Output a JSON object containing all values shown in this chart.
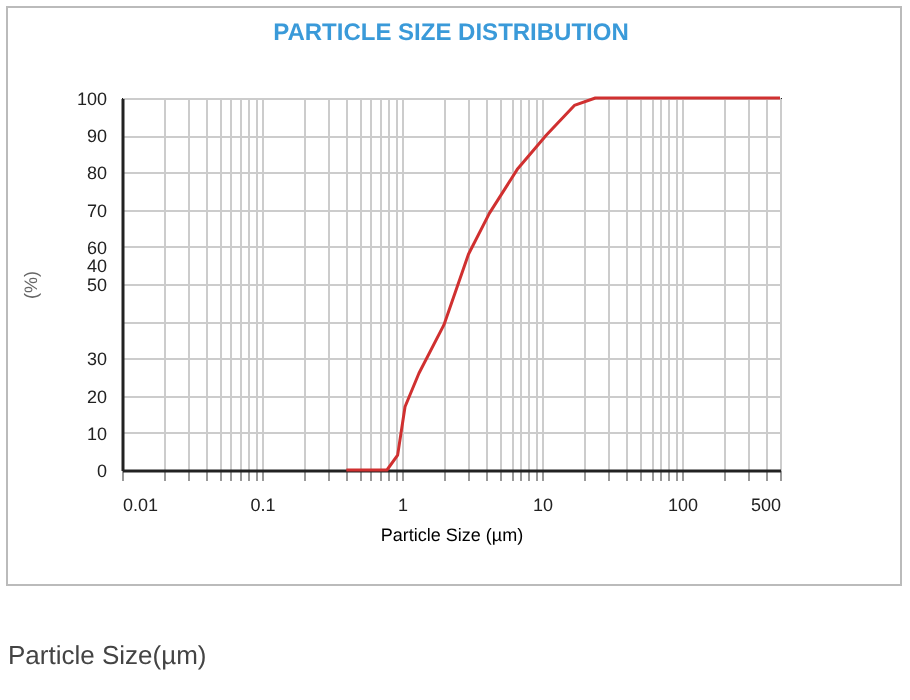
{
  "chart_data": {
    "type": "line",
    "title": "PARTICLE SIZE DISTRIBUTION",
    "xlabel": "Particle Size (µm)",
    "ylabel": "(%)",
    "log": "x",
    "grid": true,
    "marker": "none",
    "line_style": "solid",
    "xlim": [
      0.01,
      500
    ],
    "xticks": [
      0.01,
      0.1,
      1,
      10,
      100,
      500
    ],
    "ylim": [
      0,
      100
    ],
    "yticks": [
      0,
      10,
      20,
      30,
      {
        "value": 40,
        "label": null
      },
      50,
      {
        "value": 60,
        "label": "60\n40"
      },
      70,
      80,
      90,
      100
    ],
    "series": [
      {
        "color": "#d03030",
        "x": [
          0.4,
          0.78,
          0.93,
          1.05,
          1.32,
          1.99,
          2.98,
          4.2,
          6.7,
          10.7,
          17,
          24,
          500
        ],
        "values": [
          0,
          0,
          4,
          17,
          26,
          39,
          58,
          69,
          81,
          90,
          98,
          100,
          100
        ]
      }
    ],
    "annotations": [
      "Particle Size(µm)"
    ]
  }
}
